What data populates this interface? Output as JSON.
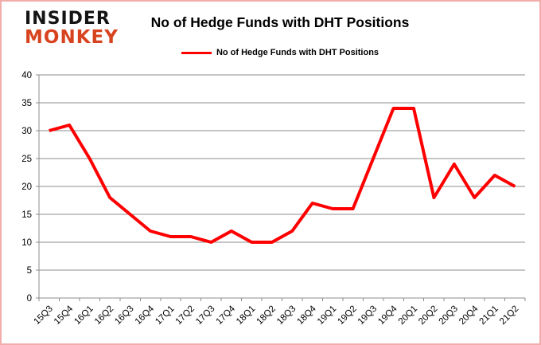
{
  "logo": {
    "line1": "INSIDER",
    "line2": "MONKEY"
  },
  "header": {
    "title": "No of Hedge Funds with DHT Positions"
  },
  "legend": {
    "label": "No of Hedge Funds with DHT Positions"
  },
  "colors": {
    "line": "#FF0000",
    "gridline": "#8C8C8C",
    "axis": "#8C8C8C",
    "tick_label": "#000000",
    "frame_border": "#F2ACAC",
    "logo_black": "#141414",
    "logo_red": "#D8431F",
    "background": "#FFFFFF"
  },
  "chart_data": {
    "type": "line",
    "title": "No of Hedge Funds with DHT Positions",
    "series_name": "No of Hedge Funds with DHT Positions",
    "categories": [
      "15Q3",
      "15Q4",
      "16Q1",
      "16Q2",
      "16Q3",
      "16Q4",
      "17Q1",
      "17Q2",
      "17Q3",
      "17Q4",
      "18Q1",
      "18Q2",
      "18Q3",
      "18Q4",
      "19Q1",
      "19Q2",
      "19Q3",
      "19Q4",
      "20Q1",
      "20Q2",
      "20Q3",
      "20Q4",
      "21Q1",
      "21Q2"
    ],
    "values": [
      30,
      31,
      25,
      18,
      15,
      12,
      11,
      11,
      10,
      12,
      10,
      10,
      12,
      17,
      16,
      16,
      25,
      34,
      34,
      18,
      24,
      18,
      22,
      20
    ],
    "xlabel": "",
    "ylabel": "",
    "ylim": [
      0,
      40
    ],
    "ytick_step": 5,
    "grid": true,
    "legend_position": "top",
    "x_label_rotation_deg": -45
  }
}
